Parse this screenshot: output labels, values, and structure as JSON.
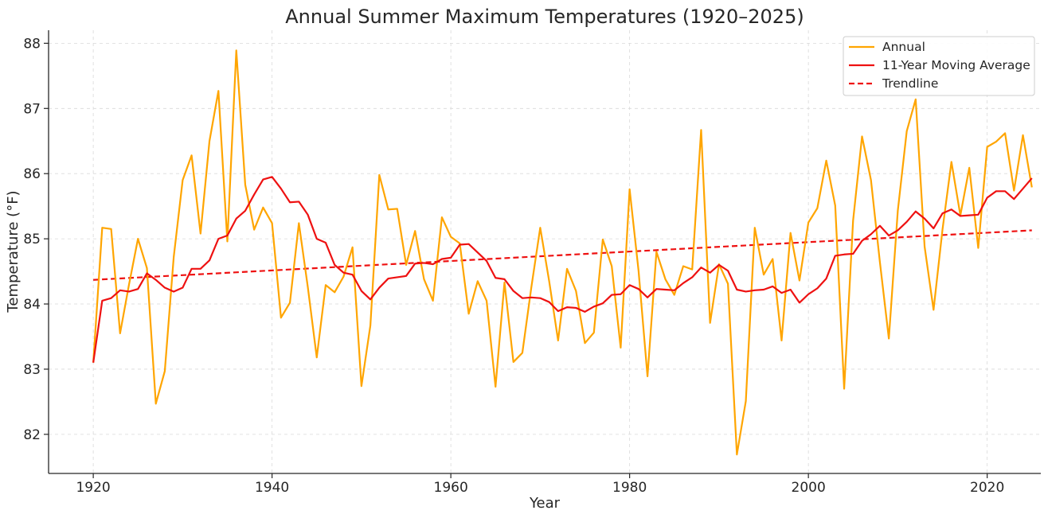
{
  "chart_data": {
    "type": "line",
    "title": "Annual Summer Maximum Temperatures (1920–2025)",
    "xlabel": "Year",
    "ylabel": "Temperature (°F)",
    "xlim": [
      1915,
      2026
    ],
    "ylim": [
      81.4,
      88.2
    ],
    "xticks": [
      1920,
      1940,
      1960,
      1980,
      2000,
      2020
    ],
    "yticks": [
      82,
      83,
      84,
      85,
      86,
      87,
      88
    ],
    "grid": true,
    "legend_position": "top-right",
    "colors": {
      "annual": "#FFA500",
      "moving_average": "#EE1111",
      "trendline": "#EE1111"
    },
    "x": [
      1920,
      1921,
      1922,
      1923,
      1924,
      1925,
      1926,
      1927,
      1928,
      1929,
      1930,
      1931,
      1932,
      1933,
      1934,
      1935,
      1936,
      1937,
      1938,
      1939,
      1940,
      1941,
      1942,
      1943,
      1944,
      1945,
      1946,
      1947,
      1948,
      1949,
      1950,
      1951,
      1952,
      1953,
      1954,
      1955,
      1956,
      1957,
      1958,
      1959,
      1960,
      1961,
      1962,
      1963,
      1964,
      1965,
      1966,
      1967,
      1968,
      1969,
      1970,
      1971,
      1972,
      1973,
      1974,
      1975,
      1976,
      1977,
      1978,
      1979,
      1980,
      1981,
      1982,
      1983,
      1984,
      1985,
      1986,
      1987,
      1988,
      1989,
      1990,
      1991,
      1992,
      1993,
      1994,
      1995,
      1996,
      1997,
      1998,
      1999,
      2000,
      2001,
      2002,
      2003,
      2004,
      2005,
      2006,
      2007,
      2008,
      2009,
      2010,
      2011,
      2012,
      2013,
      2014,
      2015,
      2016,
      2017,
      2018,
      2019,
      2020,
      2021,
      2022,
      2023,
      2024,
      2025
    ],
    "series": [
      {
        "name": "Annual",
        "style": "solid",
        "values": [
          83.1,
          85.17,
          85.15,
          83.55,
          84.3,
          85.0,
          84.55,
          82.47,
          82.97,
          84.72,
          85.9,
          86.28,
          85.08,
          86.5,
          87.27,
          84.96,
          87.89,
          85.83,
          85.14,
          85.48,
          85.24,
          83.79,
          84.02,
          85.24,
          84.26,
          83.18,
          84.29,
          84.18,
          84.42,
          84.87,
          82.74,
          83.67,
          85.98,
          85.45,
          85.46,
          84.6,
          85.12,
          84.38,
          84.05,
          85.33,
          85.03,
          84.93,
          83.85,
          84.35,
          84.05,
          82.73,
          84.33,
          83.11,
          83.25,
          84.25,
          85.17,
          84.35,
          83.44,
          84.54,
          84.2,
          83.4,
          83.56,
          84.99,
          84.58,
          83.33,
          85.76,
          84.51,
          82.89,
          84.8,
          84.38,
          84.14,
          84.58,
          84.53,
          86.67,
          83.71,
          84.61,
          84.31,
          81.69,
          82.51,
          85.17,
          84.45,
          84.69,
          83.44,
          85.09,
          84.36,
          85.25,
          85.47,
          86.2,
          85.51,
          82.7,
          85.28,
          86.57,
          85.9,
          84.64,
          83.47,
          85.43,
          86.65,
          87.14,
          84.88,
          83.91,
          85.14,
          86.18,
          85.36,
          86.09,
          84.86,
          86.41,
          86.49,
          86.62,
          85.74,
          86.59,
          85.79
        ]
      },
      {
        "name": "11-Year Moving Average",
        "style": "solid",
        "values": [
          83.1,
          84.05,
          84.09,
          84.21,
          84.19,
          84.23,
          84.47,
          84.37,
          84.25,
          84.19,
          84.25,
          84.54,
          84.54,
          84.67,
          85.0,
          85.05,
          85.31,
          85.43,
          85.68,
          85.91,
          85.95,
          85.77,
          85.56,
          85.57,
          85.37,
          85.0,
          84.94,
          84.6,
          84.48,
          84.45,
          84.2,
          84.07,
          84.25,
          84.39,
          84.41,
          84.43,
          84.62,
          84.63,
          84.61,
          84.69,
          84.71,
          84.91,
          84.92,
          84.79,
          84.66,
          84.4,
          84.38,
          84.2,
          84.09,
          84.1,
          84.09,
          84.03,
          83.89,
          83.95,
          83.94,
          83.88,
          83.96,
          84.01,
          84.14,
          84.15,
          84.29,
          84.23,
          84.1,
          84.23,
          84.22,
          84.21,
          84.32,
          84.41,
          84.56,
          84.48,
          84.6,
          84.51,
          84.22,
          84.19,
          84.21,
          84.22,
          84.27,
          84.17,
          84.22,
          84.02,
          84.15,
          84.24,
          84.39,
          84.74,
          84.76,
          84.77,
          84.97,
          85.07,
          85.2,
          85.05,
          85.13,
          85.26,
          85.42,
          85.31,
          85.16,
          85.39,
          85.45,
          85.35,
          85.36,
          85.37,
          85.63,
          85.73,
          85.73,
          85.61,
          85.77,
          85.93
        ]
      },
      {
        "name": "Trendline",
        "style": "dashed",
        "x": [
          1920,
          2025
        ],
        "values": [
          84.37,
          85.13
        ]
      }
    ]
  }
}
